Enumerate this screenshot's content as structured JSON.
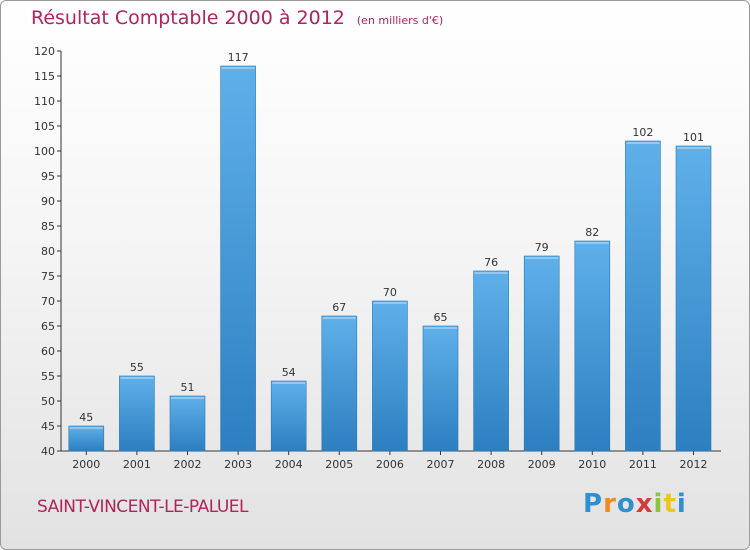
{
  "header": {
    "title": "Résultat Comptable 2000 à 2012",
    "subtitle": "(en milliers d'€)"
  },
  "footer": {
    "commune": "SAINT-VINCENT-LE-PALUEL",
    "logo_text": "Proxiti",
    "logo_colors": [
      "#2f8fd1",
      "#f08a1e",
      "#2f8fd1",
      "#d63a3a",
      "#8bc43f",
      "#f0c419",
      "#2f8fd1"
    ]
  },
  "chart_data": {
    "type": "bar",
    "title": "Résultat Comptable 2000 à 2012",
    "subtitle": "(en milliers d'€)",
    "categories": [
      "2000",
      "2001",
      "2002",
      "2003",
      "2004",
      "2005",
      "2006",
      "2007",
      "2008",
      "2009",
      "2010",
      "2011",
      "2012"
    ],
    "values": [
      45,
      55,
      51,
      117,
      54,
      67,
      70,
      65,
      76,
      79,
      82,
      102,
      101
    ],
    "ylim": [
      40,
      120
    ],
    "yticks": [
      40,
      45,
      50,
      55,
      60,
      65,
      70,
      75,
      80,
      85,
      90,
      95,
      100,
      105,
      110,
      115,
      120
    ],
    "xlabel": "",
    "ylabel": "",
    "grid": false,
    "legend": "none",
    "colors": {
      "bar_light": "#5fb0ea",
      "bar_dark": "#2c7fc0",
      "bar_border": "#2a78b8",
      "axis": "#333333",
      "text": "#333333"
    }
  }
}
